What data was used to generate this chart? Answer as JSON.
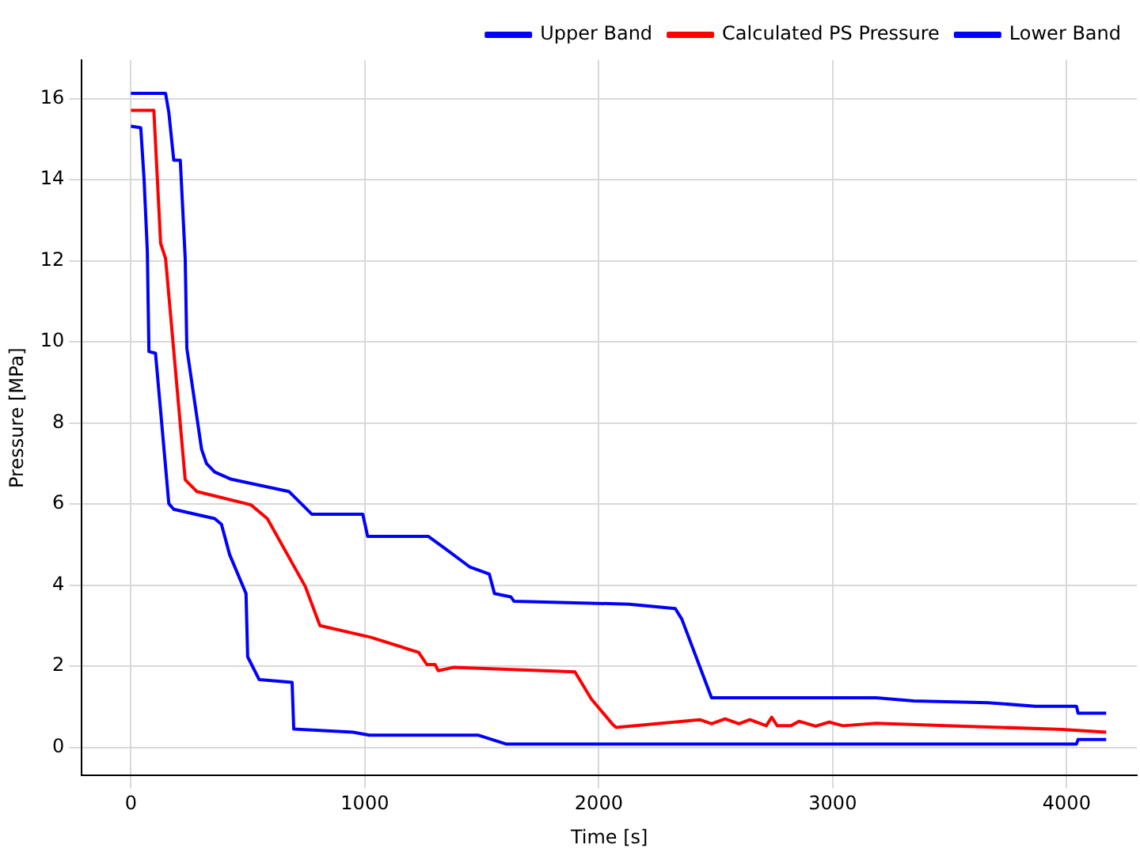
{
  "chart_data": {
    "type": "line",
    "xlabel": "Time [s]",
    "ylabel": "Pressure [MPa]",
    "xlim": [
      -210,
      4300
    ],
    "ylim": [
      -0.7,
      16.95
    ],
    "xticks": [
      0,
      1000,
      2000,
      3000,
      4000
    ],
    "yticks": [
      0,
      2,
      4,
      6,
      8,
      10,
      12,
      14,
      16
    ],
    "grid": true,
    "legend": "top right",
    "marker": "none",
    "line_style": "solid",
    "series": [
      {
        "name": "Upper Band",
        "color": "#0000ff",
        "x": [
          0,
          148,
          162,
          183,
          211,
          232,
          239,
          302,
          323,
          358,
          429,
          675,
          773,
          991,
          1012,
          1272,
          1343,
          1448,
          1532,
          1554,
          1624,
          1638,
          2130,
          2327,
          2355,
          2482,
          3185,
          3346,
          3663,
          3866,
          4042,
          4049,
          4169
        ],
        "values": [
          16.13,
          16.13,
          15.66,
          14.48,
          14.48,
          12.06,
          9.84,
          7.35,
          7.0,
          6.79,
          6.61,
          6.31,
          5.75,
          5.75,
          5.2,
          5.2,
          4.9,
          4.45,
          4.27,
          3.79,
          3.71,
          3.6,
          3.53,
          3.42,
          3.16,
          1.22,
          1.22,
          1.14,
          1.1,
          1.01,
          1.01,
          0.84,
          0.84
        ]
      },
      {
        "name": "Calculated PS Pressure",
        "color": "#ff0000",
        "x": [
          0,
          98,
          127,
          148,
          232,
          281,
          513,
          583,
          745,
          808,
          1026,
          1230,
          1265,
          1300,
          1314,
          1378,
          1898,
          1968,
          2060,
          2074,
          2432,
          2482,
          2540,
          2599,
          2646,
          2716,
          2739,
          2763,
          2821,
          2856,
          2927,
          2985,
          3044,
          3185,
          3560,
          3980,
          4169
        ],
        "values": [
          15.71,
          15.71,
          12.43,
          12.06,
          6.6,
          6.31,
          5.98,
          5.64,
          3.97,
          3.0,
          2.71,
          2.34,
          2.04,
          2.04,
          1.89,
          1.97,
          1.86,
          1.19,
          0.56,
          0.49,
          0.68,
          0.58,
          0.7,
          0.58,
          0.68,
          0.53,
          0.74,
          0.53,
          0.53,
          0.64,
          0.52,
          0.62,
          0.53,
          0.59,
          0.52,
          0.44,
          0.37
        ]
      },
      {
        "name": "Lower Band",
        "color": "#0000ff",
        "x": [
          0,
          42,
          56,
          70,
          77,
          105,
          162,
          183,
          358,
          387,
          422,
          492,
          499,
          548,
          689,
          696,
          949,
          1019,
          1483,
          1603,
          4042,
          4049,
          4169
        ],
        "values": [
          15.32,
          15.28,
          14.03,
          12.25,
          9.76,
          9.72,
          6.01,
          5.87,
          5.64,
          5.5,
          4.75,
          3.79,
          2.23,
          1.67,
          1.6,
          0.45,
          0.37,
          0.3,
          0.3,
          0.08,
          0.08,
          0.19,
          0.19
        ]
      }
    ]
  }
}
